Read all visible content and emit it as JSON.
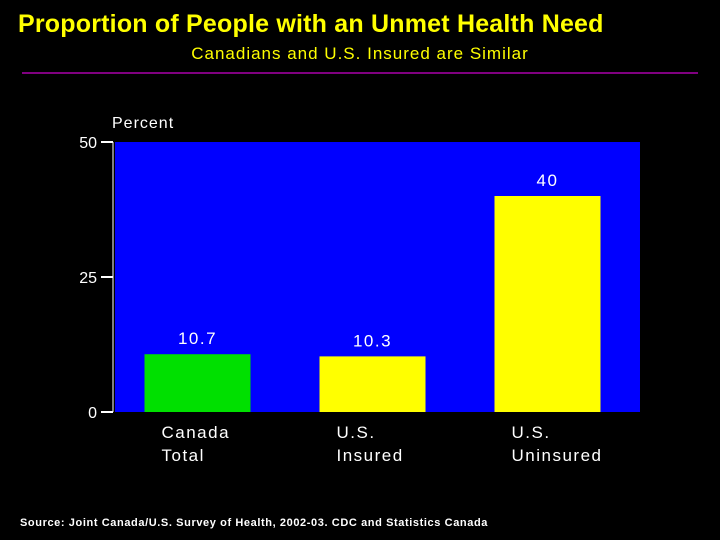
{
  "title": "Proportion of People with an Unmet Health Need",
  "subtitle": "Canadians and U.S. Insured are Similar",
  "source": "Source: Joint Canada/U.S. Survey of Health, 2002-03.  CDC and Statistics Canada",
  "colors": {
    "background": "#000000",
    "plot_area": "#0000FF",
    "title": "#FFFF00",
    "rule": "#800080",
    "canada_bar": "#00E000",
    "us_bar": "#FFFF00",
    "text": "#FFFFFF"
  },
  "chart_data": {
    "type": "bar",
    "title": "Proportion of People with an Unmet Health Need",
    "subtitle": "Canadians and U.S. Insured are Similar",
    "ylabel": "Percent",
    "xlabel": "",
    "ylim": [
      0,
      50
    ],
    "yticks": [
      0,
      25,
      50
    ],
    "grid": false,
    "categories": [
      [
        "Canada",
        "Total"
      ],
      [
        "U.S.",
        "Insured"
      ],
      [
        "U.S.",
        "Uninsured"
      ]
    ],
    "values": [
      10.7,
      10.3,
      40
    ],
    "value_labels": [
      "10.7",
      "10.3",
      "40"
    ],
    "bar_colors": [
      "#00E000",
      "#FFFF00",
      "#FFFF00"
    ]
  }
}
